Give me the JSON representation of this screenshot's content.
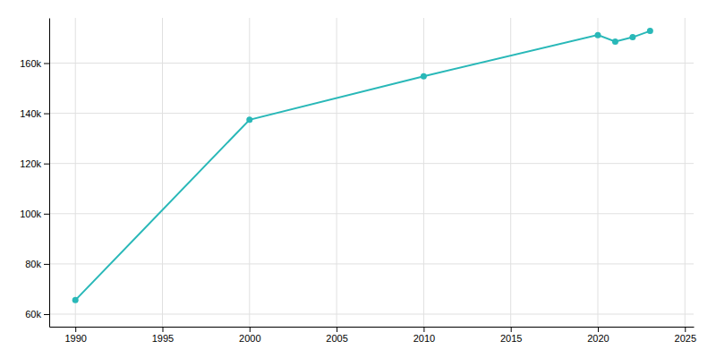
{
  "chart_data": {
    "type": "line",
    "x": [
      1990,
      2000,
      2010,
      2020,
      2021,
      2022,
      2023
    ],
    "values": [
      65566,
      137427,
      154750,
      171178,
      168582,
      170307,
      172795
    ],
    "color": "#29b8b8",
    "marker": "circle",
    "xlim": [
      1988.5,
      2025.5
    ],
    "ylim": [
      55000,
      178000
    ],
    "xticks": [
      1990,
      1995,
      2000,
      2005,
      2010,
      2015,
      2020,
      2025
    ],
    "yticks": [
      {
        "value": 60000,
        "label": "60k"
      },
      {
        "value": 80000,
        "label": "80k"
      },
      {
        "value": 100000,
        "label": "100k"
      },
      {
        "value": 120000,
        "label": "120k"
      },
      {
        "value": 140000,
        "label": "140k"
      },
      {
        "value": 160000,
        "label": "160k"
      }
    ],
    "grid": true
  }
}
